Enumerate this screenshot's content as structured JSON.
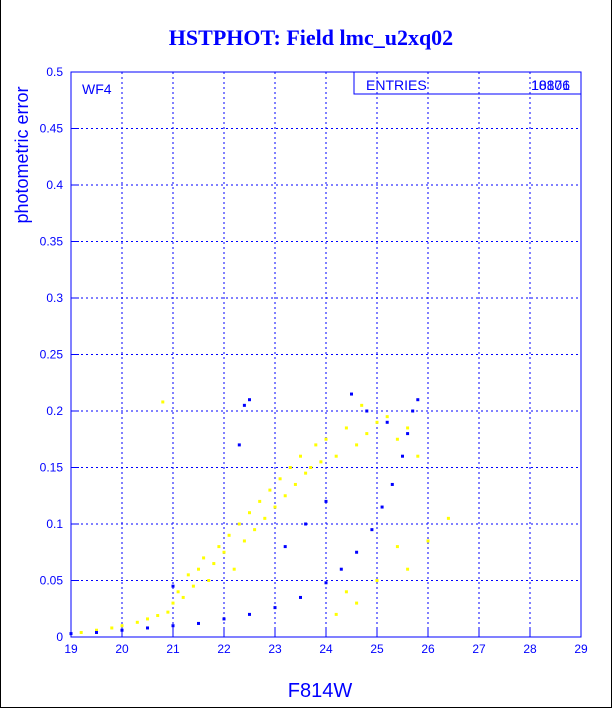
{
  "chart_data": {
    "type": "scatter",
    "title": "HSTPHOT: Field lmc_u2xq02",
    "xlabel": "F814W",
    "ylabel": "photometric error",
    "panel_label": "WF4",
    "stats_box": {
      "label": "ENTRIES",
      "value_a": "18806",
      "value_b": "10171"
    },
    "xlim": [
      19,
      29
    ],
    "ylim": [
      0,
      0.5
    ],
    "xticks": [
      "19",
      "20",
      "21",
      "22",
      "23",
      "24",
      "25",
      "26",
      "27",
      "28",
      "29"
    ],
    "yticks": [
      "0",
      "0.05",
      "0.1",
      "0.15",
      "0.2",
      "0.25",
      "0.3",
      "0.35",
      "0.4",
      "0.45",
      "0.5"
    ],
    "grid": true,
    "series": [
      {
        "color": "#ffff00",
        "description_of_points": "broad scatter around error curve",
        "points": [
          [
            19.2,
            0.004
          ],
          [
            19.5,
            0.006
          ],
          [
            19.8,
            0.008
          ],
          [
            20.0,
            0.01
          ],
          [
            20.3,
            0.013
          ],
          [
            20.5,
            0.016
          ],
          [
            20.7,
            0.019
          ],
          [
            20.8,
            0.208
          ],
          [
            20.9,
            0.022
          ],
          [
            21.0,
            0.03
          ],
          [
            21.1,
            0.04
          ],
          [
            21.2,
            0.035
          ],
          [
            21.3,
            0.055
          ],
          [
            21.4,
            0.045
          ],
          [
            21.5,
            0.06
          ],
          [
            21.6,
            0.07
          ],
          [
            21.7,
            0.05
          ],
          [
            21.8,
            0.065
          ],
          [
            21.9,
            0.08
          ],
          [
            22.0,
            0.075
          ],
          [
            22.1,
            0.09
          ],
          [
            22.2,
            0.06
          ],
          [
            22.3,
            0.1
          ],
          [
            22.4,
            0.085
          ],
          [
            22.5,
            0.11
          ],
          [
            22.6,
            0.095
          ],
          [
            22.7,
            0.12
          ],
          [
            22.8,
            0.105
          ],
          [
            22.9,
            0.13
          ],
          [
            23.0,
            0.115
          ],
          [
            23.1,
            0.14
          ],
          [
            23.2,
            0.125
          ],
          [
            23.3,
            0.15
          ],
          [
            23.4,
            0.135
          ],
          [
            23.5,
            0.16
          ],
          [
            23.6,
            0.145
          ],
          [
            23.7,
            0.15
          ],
          [
            23.8,
            0.17
          ],
          [
            23.9,
            0.155
          ],
          [
            24.0,
            0.175
          ],
          [
            24.2,
            0.16
          ],
          [
            24.4,
            0.185
          ],
          [
            24.6,
            0.17
          ],
          [
            24.7,
            0.205
          ],
          [
            24.8,
            0.18
          ],
          [
            25.0,
            0.19
          ],
          [
            25.2,
            0.195
          ],
          [
            25.4,
            0.175
          ],
          [
            25.6,
            0.185
          ],
          [
            25.8,
            0.16
          ],
          [
            24.4,
            0.04
          ],
          [
            24.6,
            0.03
          ],
          [
            24.2,
            0.02
          ],
          [
            25.0,
            0.05
          ],
          [
            25.4,
            0.08
          ],
          [
            25.6,
            0.06
          ],
          [
            26.0,
            0.085
          ],
          [
            26.4,
            0.105
          ]
        ]
      },
      {
        "color": "#0000ff",
        "description_of_points": "tight error curve rising steeply",
        "points": [
          [
            19.0,
            0.003
          ],
          [
            19.5,
            0.004
          ],
          [
            20.0,
            0.006
          ],
          [
            20.5,
            0.008
          ],
          [
            21.0,
            0.01
          ],
          [
            21.5,
            0.012
          ],
          [
            22.0,
            0.016
          ],
          [
            22.5,
            0.02
          ],
          [
            23.0,
            0.026
          ],
          [
            23.5,
            0.035
          ],
          [
            24.0,
            0.048
          ],
          [
            24.3,
            0.06
          ],
          [
            24.6,
            0.075
          ],
          [
            24.9,
            0.095
          ],
          [
            25.1,
            0.115
          ],
          [
            25.3,
            0.135
          ],
          [
            25.5,
            0.16
          ],
          [
            25.6,
            0.18
          ],
          [
            25.7,
            0.2
          ],
          [
            25.8,
            0.21
          ],
          [
            22.4,
            0.205
          ],
          [
            22.5,
            0.21
          ],
          [
            22.3,
            0.17
          ],
          [
            24.5,
            0.215
          ],
          [
            24.8,
            0.2
          ],
          [
            25.2,
            0.19
          ],
          [
            24.0,
            0.12
          ],
          [
            23.6,
            0.1
          ],
          [
            23.2,
            0.08
          ],
          [
            21.0,
            0.045
          ]
        ]
      }
    ]
  }
}
